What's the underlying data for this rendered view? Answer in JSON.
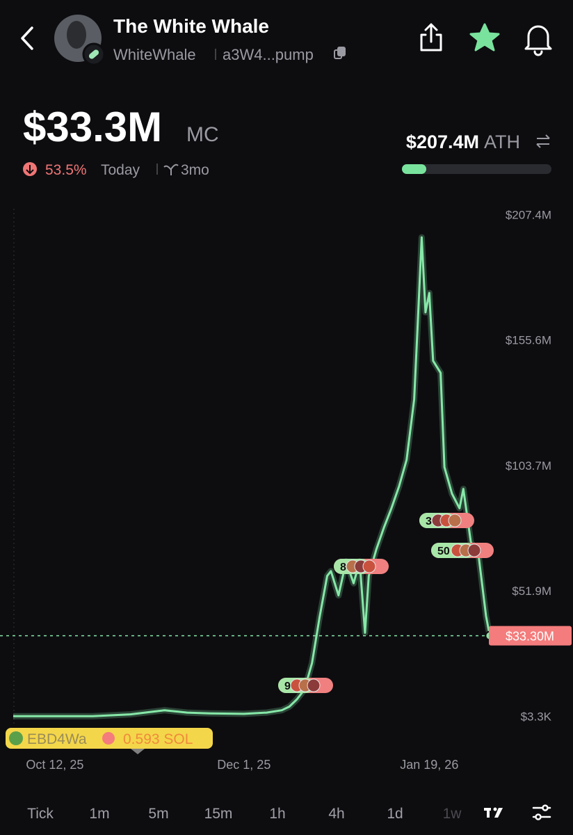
{
  "header": {
    "title": "The White Whale",
    "handle": "WhiteWhale",
    "address": "a3W4...pump"
  },
  "market_cap": {
    "value": "$33.3M",
    "unit": "MC",
    "change": "53.5%",
    "period": "Today",
    "age": "3mo"
  },
  "ath": {
    "value": "$207.4M",
    "label": "ATH"
  },
  "chart_data": {
    "type": "line",
    "color": "#86e8a8",
    "x": [
      -11,
      0,
      10,
      20,
      29,
      35,
      41,
      50,
      56,
      60,
      62,
      64,
      66,
      68,
      70,
      72,
      73,
      75,
      77,
      79,
      80.6,
      82,
      83,
      85,
      87,
      89,
      91,
      93,
      95,
      96,
      97,
      98,
      99,
      100,
      102,
      103,
      105,
      107,
      108,
      110,
      112,
      114,
      115
    ],
    "values": [
      0.01,
      0.02,
      0.05,
      0.8,
      2.5,
      1.5,
      1.2,
      1.0,
      1.5,
      2.5,
      4,
      7,
      11,
      22,
      41,
      58,
      60,
      50,
      64,
      55,
      64,
      34.5,
      58,
      69,
      78,
      86,
      95,
      106,
      131,
      164,
      198,
      167,
      175,
      147,
      142,
      103,
      92,
      86,
      94,
      72,
      67,
      41.5,
      33.3
    ],
    "xlim": [
      -14.5,
      137
    ],
    "xticks": [
      {
        "value": 0,
        "label": "Oct 12, 25"
      },
      {
        "value": 50,
        "label": "Dec 1, 25"
      },
      {
        "value": 99,
        "label": "Jan 19, 26"
      }
    ],
    "ylim": [
      -4.5,
      212.7
    ],
    "yticks": [
      {
        "value": 0.0033,
        "label": "$3.3K"
      },
      {
        "value": 51.9,
        "label": "$51.9M"
      },
      {
        "value": 103.7,
        "label": "$103.7M"
      },
      {
        "value": 155.6,
        "label": "$155.6M"
      },
      {
        "value": 207.4,
        "label": "$207.4M"
      }
    ],
    "last_price": {
      "value": 33.3,
      "label": "$33.30M"
    },
    "trade_markers": [
      9,
      8,
      3,
      50
    ],
    "first_buy": {
      "wallet": "EBD4Wa",
      "amount": "0.593 SOL"
    }
  },
  "timeframes": [
    "Tick",
    "1m",
    "5m",
    "15m",
    "1h",
    "4h",
    "1d",
    "1w"
  ]
}
